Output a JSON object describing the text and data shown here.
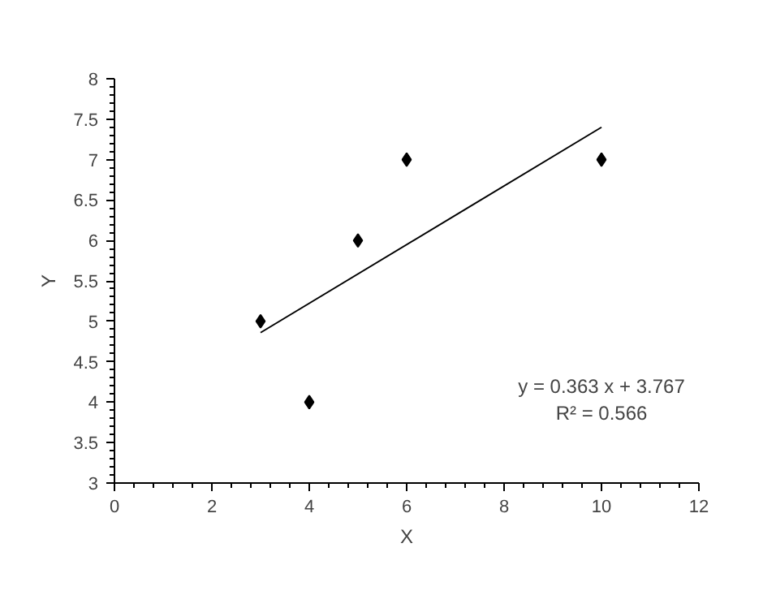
{
  "chart_data": {
    "type": "scatter",
    "xlabel": "X",
    "ylabel": "Y",
    "xlim": [
      0,
      12
    ],
    "xticks": [
      0,
      2,
      4,
      6,
      8,
      10,
      12
    ],
    "ylim": [
      3,
      8
    ],
    "yticks": [
      3,
      3.5,
      4,
      4.5,
      5,
      5.5,
      6,
      6.5,
      7,
      7.5,
      8
    ],
    "grid": false,
    "marker": "diamond",
    "series": [
      {
        "color": "#000000",
        "x": [
          3,
          4,
          5,
          6,
          10
        ],
        "values": [
          5,
          4,
          6,
          7,
          7
        ]
      },
      {
        "type": "line",
        "color": "#000000",
        "marker": "none",
        "x": [
          3,
          10
        ],
        "values": [
          4.86,
          7.4
        ]
      }
    ],
    "annotations": [
      "y = 0.363 x + 3.767",
      "R² = 0.566"
    ]
  }
}
